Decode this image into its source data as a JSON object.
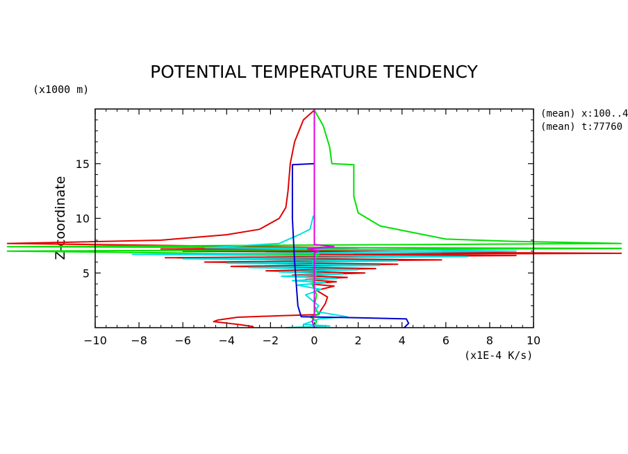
{
  "chart_data": {
    "type": "line",
    "title": "POTENTIAL TEMPERATURE TENDENCY",
    "xlabel": "(x1E-4 K/s)",
    "ylabel": "Z-coordinate",
    "yunit": "(x1000 m)",
    "xlim": [
      -10,
      10
    ],
    "ylim": [
      0,
      20
    ],
    "x_ticks": [
      -10,
      -8,
      -6,
      -4,
      -2,
      0,
      2,
      4,
      6,
      8,
      10
    ],
    "x_tick_labels": [
      "−10",
      "−8",
      "−6",
      "−4",
      "−2",
      "0",
      "2",
      "4",
      "6",
      "8",
      "10"
    ],
    "y_ticks": [
      5,
      10,
      15
    ],
    "y_tick_labels": [
      "5",
      "10",
      "15"
    ],
    "annotations": [
      "(mean) x:100..4",
      "(mean) t:77760"
    ],
    "series": [
      {
        "name": "red",
        "color": "#e00000",
        "points": [
          [
            0,
            19.9
          ],
          [
            -0.5,
            19.0
          ],
          [
            -0.9,
            17.0
          ],
          [
            -1.1,
            15.0
          ],
          [
            -1.2,
            12.5
          ],
          [
            -1.3,
            11.0
          ],
          [
            -1.6,
            10.0
          ],
          [
            -2.5,
            9.0
          ],
          [
            -4.0,
            8.5
          ],
          [
            -7.0,
            8.0
          ],
          [
            -14,
            7.7
          ],
          [
            2.0,
            7.3
          ],
          [
            -7.0,
            7.2
          ],
          [
            5.0,
            7.1
          ],
          [
            -6.0,
            7.0
          ],
          [
            14,
            6.8
          ],
          [
            -1.0,
            6.7
          ],
          [
            9.2,
            6.6
          ],
          [
            -6.8,
            6.4
          ],
          [
            5.8,
            6.2
          ],
          [
            -5.0,
            6.0
          ],
          [
            3.8,
            5.8
          ],
          [
            -3.8,
            5.6
          ],
          [
            2.8,
            5.4
          ],
          [
            -2.2,
            5.2
          ],
          [
            2.3,
            5.0
          ],
          [
            -1.0,
            4.8
          ],
          [
            1.5,
            4.6
          ],
          [
            -0.4,
            4.4
          ],
          [
            1.0,
            4.2
          ],
          [
            -0.2,
            4.0
          ],
          [
            0.9,
            3.8
          ],
          [
            0.1,
            3.4
          ],
          [
            0.6,
            2.8
          ],
          [
            0.5,
            2.2
          ],
          [
            0.3,
            1.6
          ],
          [
            0.2,
            1.2
          ],
          [
            -1.5,
            1.1
          ],
          [
            -3.5,
            0.95
          ],
          [
            -4.4,
            0.7
          ],
          [
            -4.6,
            0.55
          ],
          [
            -3.5,
            0.3
          ],
          [
            -2.8,
            0.1
          ]
        ]
      },
      {
        "name": "green",
        "color": "#00e000",
        "points": [
          [
            0,
            19.9
          ],
          [
            0.4,
            18.5
          ],
          [
            0.7,
            16.5
          ],
          [
            0.8,
            15.0
          ],
          [
            1.8,
            14.9
          ],
          [
            1.8,
            12.0
          ],
          [
            2.0,
            10.5
          ],
          [
            3.0,
            9.3
          ],
          [
            5.0,
            8.5
          ],
          [
            6.0,
            8.1
          ],
          [
            9.0,
            7.9
          ],
          [
            14,
            7.7
          ],
          [
            -14,
            7.4
          ],
          [
            14,
            7.25
          ],
          [
            -14,
            7.0
          ],
          [
            0.2,
            6.7
          ],
          [
            -0.1,
            6.0
          ],
          [
            0.1,
            5.0
          ],
          [
            -0.1,
            4.0
          ],
          [
            0.1,
            3.0
          ],
          [
            0,
            2.0
          ],
          [
            0.2,
            1.2
          ],
          [
            -0.2,
            1.0
          ],
          [
            0.1,
            0.6
          ],
          [
            0,
            0.1
          ]
        ]
      },
      {
        "name": "cyan",
        "color": "#00e0e0",
        "points": [
          [
            -0.05,
            10.2
          ],
          [
            -0.2,
            9.0
          ],
          [
            -0.7,
            8.5
          ],
          [
            -1.6,
            7.7
          ],
          [
            -5.0,
            7.3
          ],
          [
            9.2,
            7.0
          ],
          [
            -8.3,
            6.7
          ],
          [
            7.0,
            6.5
          ],
          [
            -6.0,
            6.3
          ],
          [
            3.8,
            6.1
          ],
          [
            -4.0,
            5.9
          ],
          [
            3.0,
            5.7
          ],
          [
            -3.0,
            5.5
          ],
          [
            2.0,
            5.3
          ],
          [
            -1.6,
            5.1
          ],
          [
            1.3,
            4.9
          ],
          [
            -1.5,
            4.7
          ],
          [
            1.0,
            4.5
          ],
          [
            -1.0,
            4.3
          ],
          [
            0.5,
            4.1
          ],
          [
            -0.8,
            3.9
          ],
          [
            0.3,
            3.5
          ],
          [
            -0.4,
            3.0
          ],
          [
            0.2,
            2.0
          ],
          [
            0,
            1.5
          ],
          [
            1.5,
            1.0
          ],
          [
            0.2,
            0.8
          ],
          [
            -0.5,
            0.3
          ],
          [
            0.7,
            0.15
          ],
          [
            -1.3,
            0.0
          ]
        ]
      },
      {
        "name": "blue",
        "color": "#0000cc",
        "points": [
          [
            0,
            15.0
          ],
          [
            -1.0,
            14.9
          ],
          [
            -1.0,
            10.0
          ],
          [
            -0.9,
            6.0
          ],
          [
            -0.75,
            2.0
          ],
          [
            -0.6,
            1.0
          ],
          [
            2.0,
            0.9
          ],
          [
            4.2,
            0.8
          ],
          [
            4.3,
            0.4
          ],
          [
            4.1,
            0.0
          ]
        ]
      },
      {
        "name": "magenta",
        "color": "#e000e0",
        "points": [
          [
            0,
            19.9
          ],
          [
            0,
            17.0
          ],
          [
            0,
            14.9
          ],
          [
            0,
            12.0
          ],
          [
            0,
            10.0
          ],
          [
            0,
            7.6
          ],
          [
            0.9,
            7.4
          ],
          [
            -0.3,
            7.2
          ],
          [
            0.2,
            7.0
          ],
          [
            0,
            6.8
          ],
          [
            0,
            1.0
          ],
          [
            -0.1,
            0.6
          ],
          [
            0,
            0.0
          ]
        ]
      }
    ]
  }
}
